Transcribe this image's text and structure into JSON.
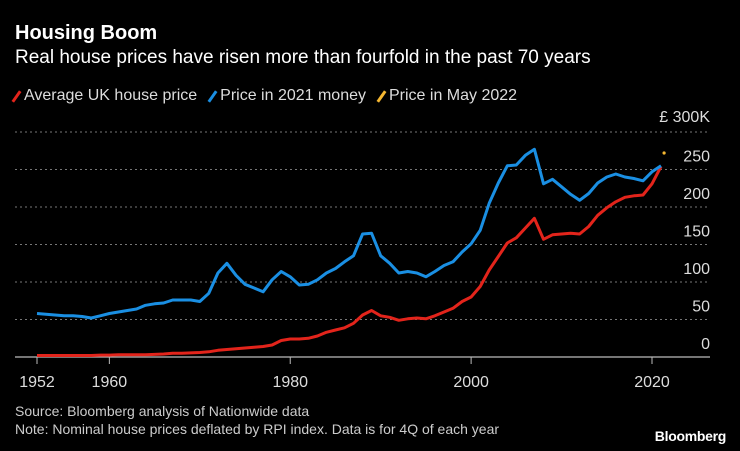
{
  "header": {
    "title": "Housing Boom",
    "subtitle": "Real house prices have risen more than fourfold in the past 70 years"
  },
  "footer": {
    "source": "Source: Bloomberg analysis of Nationwide data",
    "note": "Note: Nominal house prices deflated by RPI index. Data is for 4Q of each year",
    "logo": "Bloomberg"
  },
  "chart_data": {
    "type": "line",
    "title": "Housing Boom",
    "subtitle": "Real house prices have risen more than fourfold in the past 70 years",
    "ylabel": "",
    "xlabel": "",
    "y_unit_label": "£ 300K",
    "ylim": [
      0,
      300
    ],
    "xlim": [
      1952,
      2022
    ],
    "yticks": [
      0,
      50,
      100,
      150,
      200,
      250,
      300
    ],
    "ytick_labels": [
      "0",
      "50",
      "100",
      "150",
      "200",
      "250",
      "£ 300K"
    ],
    "xticks": [
      1952,
      1960,
      1980,
      2000,
      2020
    ],
    "xtick_labels": [
      "1952",
      "1960",
      "1980",
      "2000",
      "2020"
    ],
    "grid": true,
    "legend": "top-left",
    "x": [
      1952,
      1953,
      1954,
      1955,
      1956,
      1957,
      1958,
      1959,
      1960,
      1961,
      1962,
      1963,
      1964,
      1965,
      1966,
      1967,
      1968,
      1969,
      1970,
      1971,
      1972,
      1973,
      1974,
      1975,
      1976,
      1977,
      1978,
      1979,
      1980,
      1981,
      1982,
      1983,
      1984,
      1985,
      1986,
      1987,
      1988,
      1989,
      1990,
      1991,
      1992,
      1993,
      1994,
      1995,
      1996,
      1997,
      1998,
      1999,
      2000,
      2001,
      2002,
      2003,
      2004,
      2005,
      2006,
      2007,
      2008,
      2009,
      2010,
      2011,
      2012,
      2013,
      2014,
      2015,
      2016,
      2017,
      2018,
      2019,
      2020,
      2021
    ],
    "series": [
      {
        "name": "Average UK house price",
        "color": "#e3241b",
        "values": [
          2,
          2,
          2,
          2,
          2,
          2,
          2,
          2.5,
          2.5,
          3,
          3,
          3,
          3,
          3.5,
          4,
          5,
          5,
          5.5,
          6,
          7,
          9,
          10,
          11,
          12,
          13,
          14,
          16,
          22,
          24,
          24,
          25,
          28,
          33,
          36,
          39,
          45,
          56,
          62,
          55,
          53,
          49,
          51,
          52,
          51,
          55,
          60,
          65,
          74,
          80,
          94,
          116,
          134,
          152,
          159,
          172,
          185,
          157,
          163,
          164,
          165,
          164,
          174,
          189,
          199,
          207,
          213,
          215,
          216,
          231,
          254
        ]
      },
      {
        "name": "Price in 2021 money",
        "color": "#1a8fe3",
        "values": [
          58,
          57,
          56,
          55,
          55,
          54,
          52,
          55,
          58,
          60,
          62,
          64,
          69,
          71,
          72,
          76,
          76,
          76,
          74,
          85,
          112,
          125,
          109,
          97,
          92,
          87,
          103,
          114,
          107,
          96,
          97,
          103,
          112,
          118,
          127,
          135,
          164,
          165,
          135,
          125,
          112,
          114,
          112,
          107,
          114,
          122,
          127,
          140,
          151,
          169,
          205,
          232,
          255,
          256,
          269,
          277,
          231,
          237,
          227,
          217,
          209,
          218,
          232,
          240,
          244,
          240,
          238,
          235,
          247,
          255
        ]
      },
      {
        "name": "Price in May 2022",
        "color": "#f5b731",
        "points": [
          {
            "x": 2022,
            "y": 272
          }
        ]
      }
    ]
  }
}
